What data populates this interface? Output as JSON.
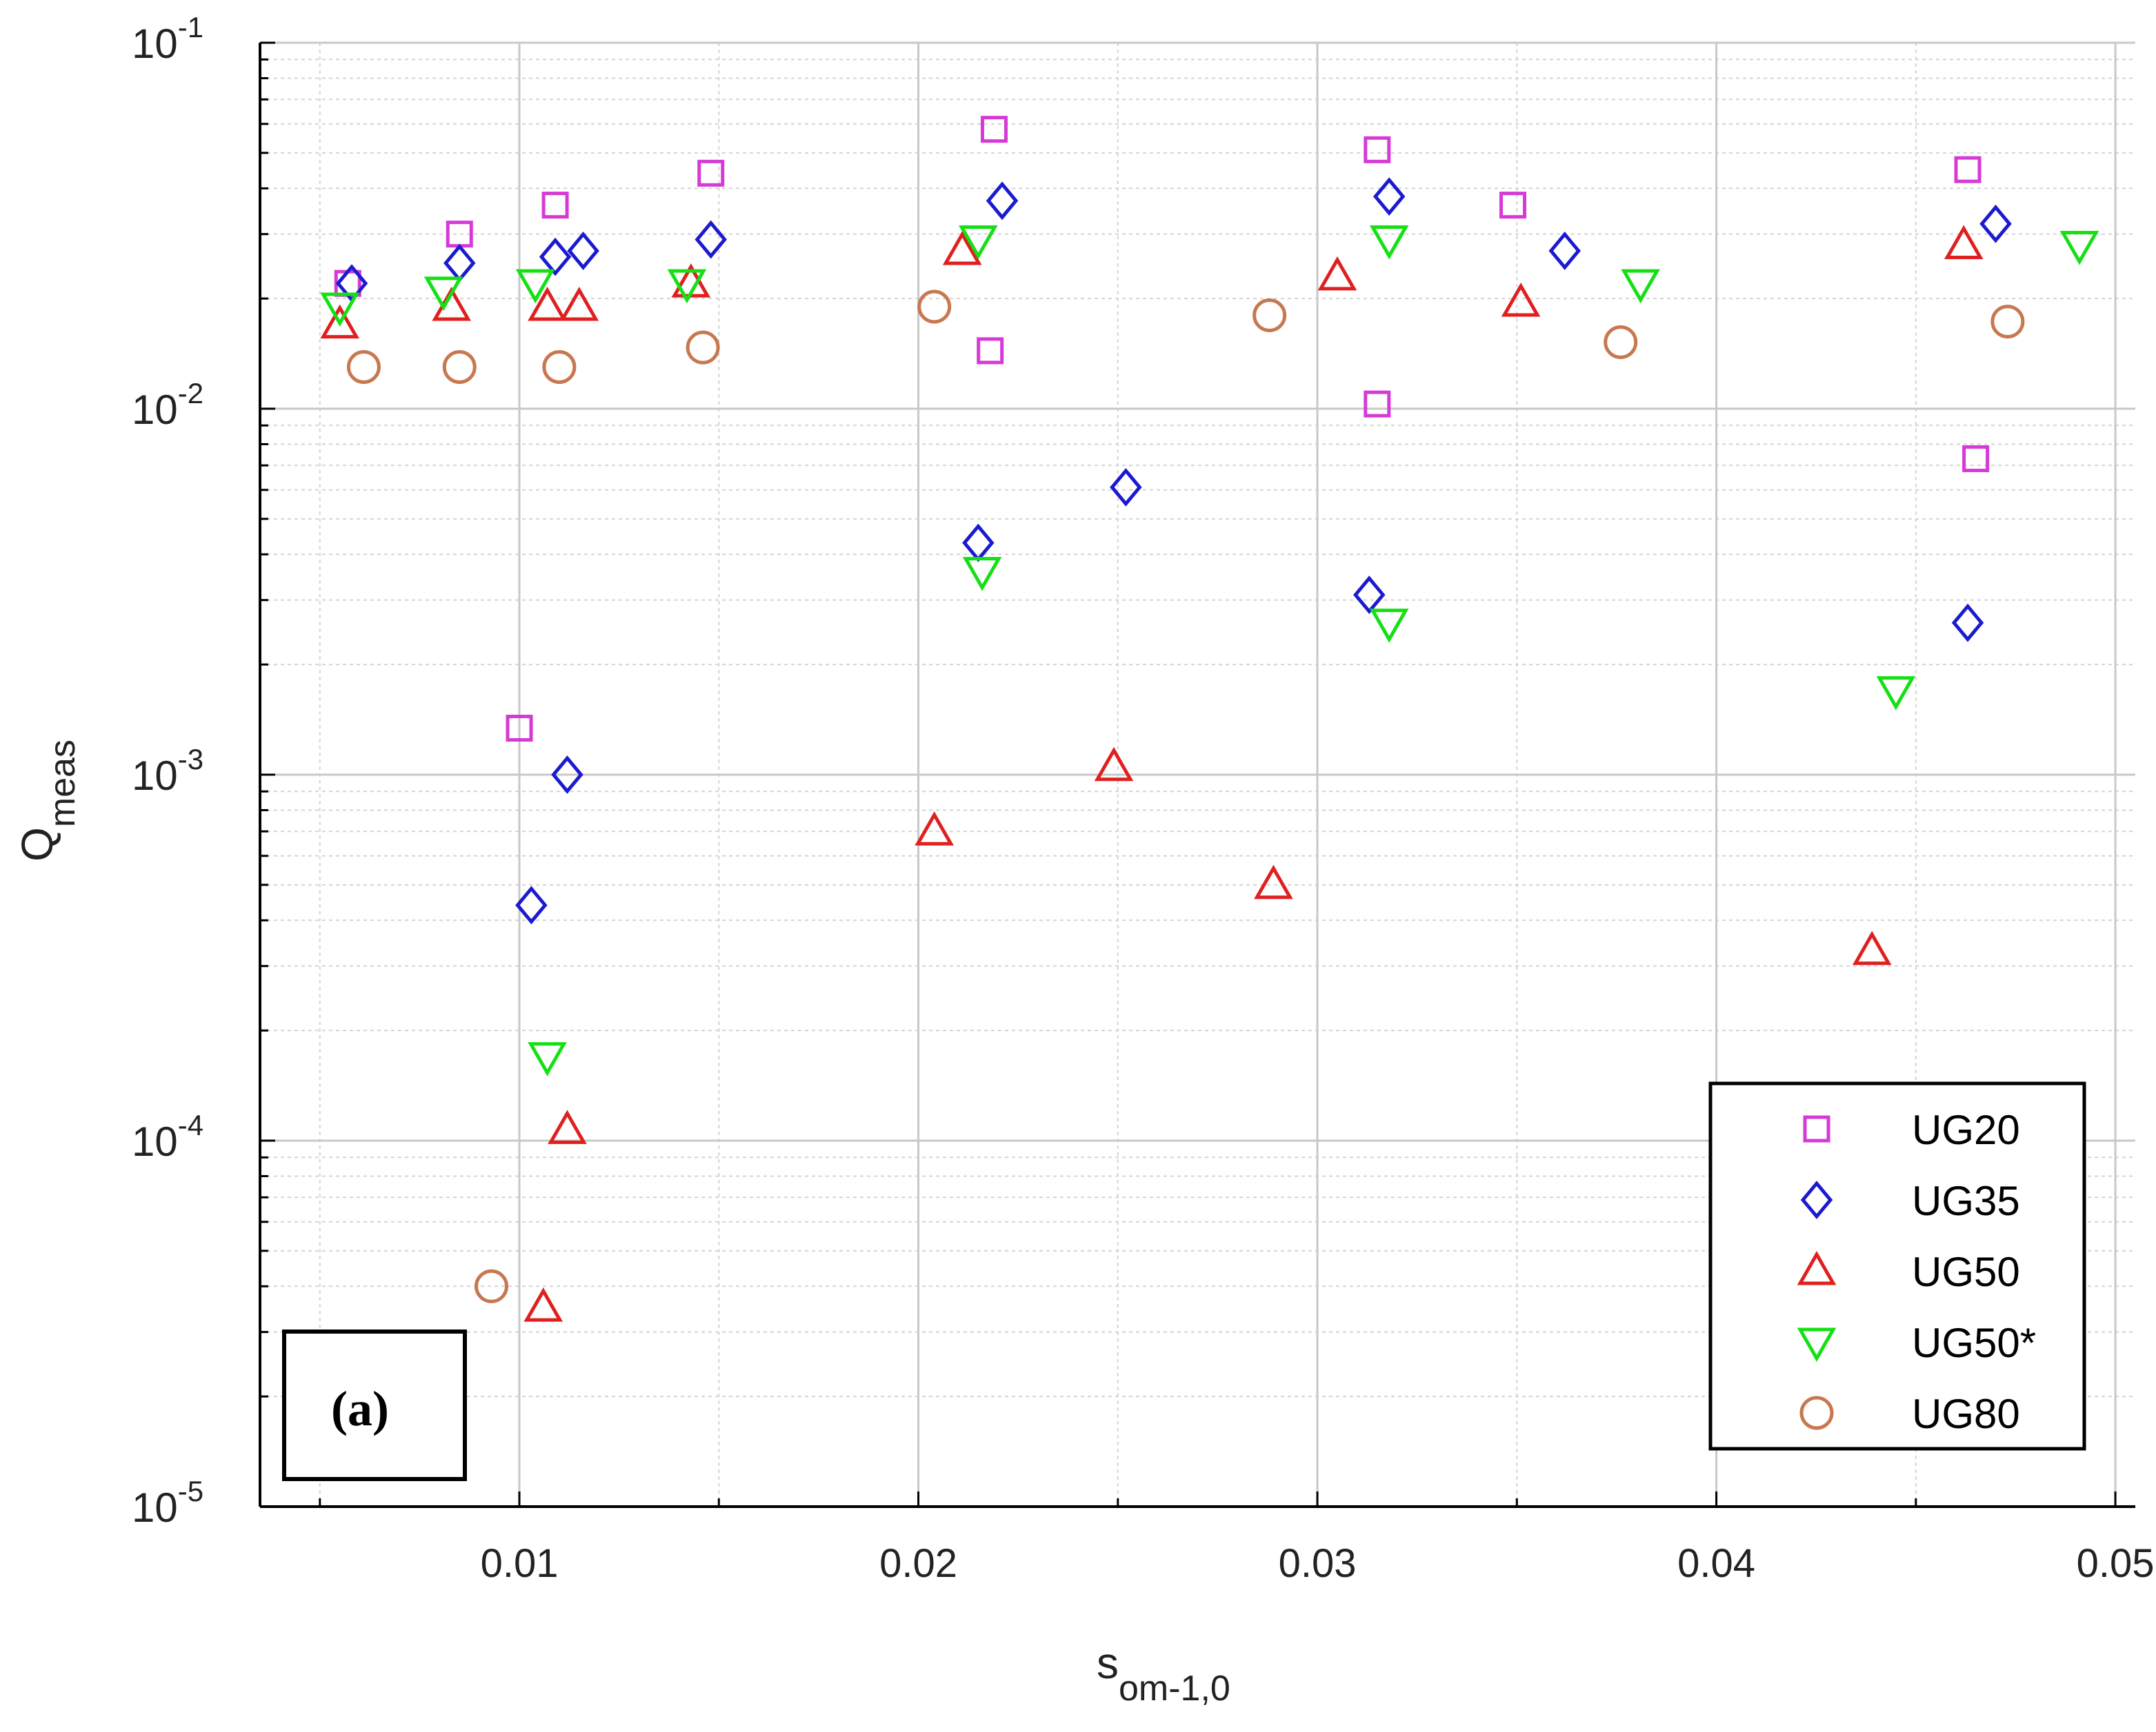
{
  "chart_data": {
    "type": "scatter",
    "title": "",
    "xlabel": "s",
    "xlabel_sub": "om-1,0",
    "ylabel": "Q",
    "ylabel_sub": "meas",
    "xlim": [
      0.0035,
      0.0505
    ],
    "ylim": [
      1e-05,
      0.1
    ],
    "yscale": "log",
    "grid": true,
    "legend_position": "bottom-right",
    "panel_label": "(a)",
    "x_ticks": [
      {
        "value": 0.01,
        "label": "0.01"
      },
      {
        "value": 0.02,
        "label": "0.02"
      },
      {
        "value": 0.03,
        "label": "0.03"
      },
      {
        "value": 0.04,
        "label": "0.04"
      },
      {
        "value": 0.05,
        "label": "0.05"
      }
    ],
    "y_ticks": [
      {
        "value": 0.1,
        "base": "10",
        "exp": "-1"
      },
      {
        "value": 0.01,
        "base": "10",
        "exp": "-2"
      },
      {
        "value": 0.001,
        "base": "10",
        "exp": "-3"
      },
      {
        "value": 0.0001,
        "base": "10",
        "exp": "-4"
      },
      {
        "value": 1e-05,
        "base": "10",
        "exp": "-5"
      }
    ],
    "series": [
      {
        "name": "UG20",
        "marker": "square",
        "color": "#d63ad6",
        "x": [
          0.0057,
          0.0085,
          0.0109,
          0.0148,
          0.0219,
          0.0218,
          0.0315,
          0.0315,
          0.0349,
          0.0463,
          0.0465,
          0.01
        ],
        "y": [
          0.022,
          0.03,
          0.036,
          0.044,
          0.058,
          0.0144,
          0.051,
          0.0103,
          0.036,
          0.045,
          0.0073,
          0.00134
        ]
      },
      {
        "name": "UG35",
        "marker": "diamond",
        "color": "#1a1ad0",
        "x": [
          0.0058,
          0.0085,
          0.0109,
          0.0116,
          0.0148,
          0.0221,
          0.0215,
          0.0252,
          0.0318,
          0.0313,
          0.0362,
          0.047,
          0.0463,
          0.0112,
          0.0103
        ],
        "y": [
          0.022,
          0.025,
          0.026,
          0.027,
          0.029,
          0.037,
          0.0043,
          0.0061,
          0.038,
          0.0031,
          0.027,
          0.032,
          0.0026,
          0.001,
          0.00044
        ]
      },
      {
        "name": "UG50",
        "marker": "triangle-up",
        "color": "#e01f1f",
        "x": [
          0.0055,
          0.0083,
          0.0107,
          0.0115,
          0.0143,
          0.0211,
          0.0204,
          0.0249,
          0.0305,
          0.0289,
          0.0351,
          0.0462,
          0.0439,
          0.0112,
          0.0106
        ],
        "y": [
          0.017,
          0.019,
          0.019,
          0.019,
          0.022,
          0.027,
          0.0007,
          0.00105,
          0.023,
          0.0005,
          0.0195,
          0.028,
          0.00033,
          0.000107,
          3.5e-05
        ]
      },
      {
        "name": "UG50*",
        "marker": "triangle-down",
        "color": "#14e014",
        "x": [
          0.0055,
          0.0081,
          0.0104,
          0.0142,
          0.0215,
          0.0216,
          0.0318,
          0.0318,
          0.0381,
          0.0491,
          0.0445,
          0.0107
        ],
        "y": [
          0.019,
          0.021,
          0.022,
          0.022,
          0.029,
          0.0036,
          0.029,
          0.0026,
          0.022,
          0.028,
          0.0017,
          0.00017
        ]
      },
      {
        "name": "UG80",
        "marker": "circle",
        "color": "#c87850",
        "x": [
          0.0061,
          0.0085,
          0.011,
          0.0146,
          0.0204,
          0.0288,
          0.0376,
          0.0473,
          0.0093
        ],
        "y": [
          0.013,
          0.013,
          0.013,
          0.0147,
          0.019,
          0.018,
          0.0152,
          0.0173,
          4e-05
        ]
      }
    ]
  }
}
